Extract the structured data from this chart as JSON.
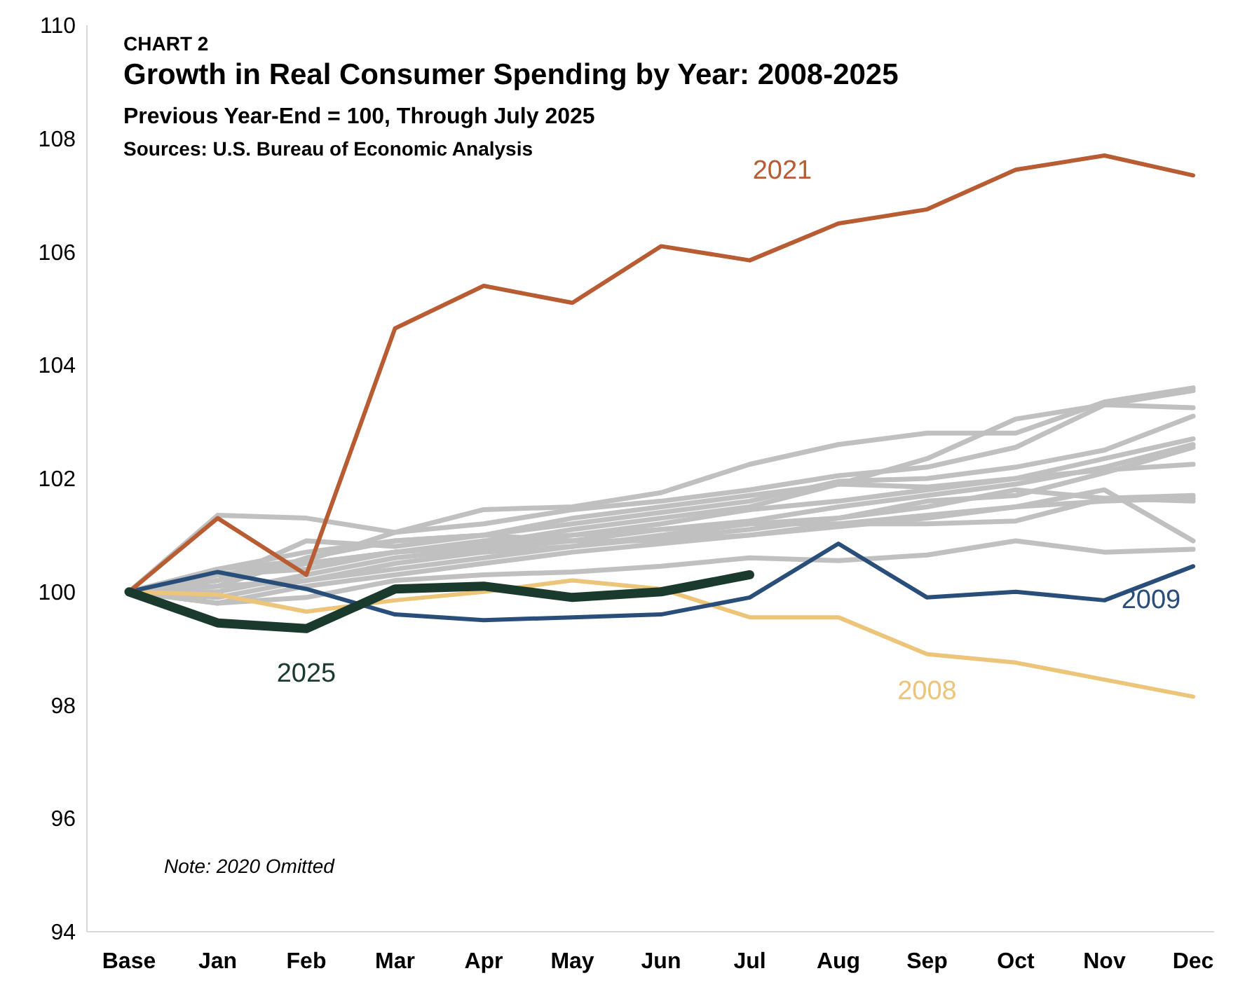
{
  "chart_data": {
    "type": "line",
    "title": "Growth in Real Consumer Spending by Year: 2008-2025",
    "subtitle": "Previous Year-End = 100, Through July 2025",
    "annotations": [
      "CHART 2",
      "Sources: U.S. Bureau of Economic Analysis",
      "Note: 2020 Omitted"
    ],
    "categories": [
      "Base",
      "Jan",
      "Feb",
      "Mar",
      "Apr",
      "May",
      "Jun",
      "Jul",
      "Aug",
      "Sep",
      "Oct",
      "Nov",
      "Dec"
    ],
    "ylim": [
      94,
      110
    ],
    "yticks": [
      94,
      96,
      98,
      100,
      102,
      104,
      106,
      108,
      110
    ],
    "grid": false,
    "marker": "none",
    "line_style": "solid",
    "series": [
      {
        "color": "#c0c0c0",
        "values": [
          100,
          101.35,
          101.3,
          101.05,
          101.2,
          101.45,
          101.6,
          101.8,
          102.05,
          102.2,
          102.55,
          103.3,
          103.55
        ]
      },
      {
        "color": "#c0c0c0",
        "values": [
          100,
          100.4,
          100.55,
          101.05,
          101.45,
          101.5,
          101.75,
          102.25,
          102.6,
          102.8,
          102.8,
          103.35,
          103.6
        ]
      },
      {
        "color": "#c0c0c0",
        "values": [
          100,
          100.2,
          100.9,
          100.8,
          101.0,
          101.3,
          101.5,
          101.7,
          101.9,
          102.35,
          103.05,
          103.3,
          103.25
        ]
      },
      {
        "color": "#c0c0c0",
        "values": [
          100,
          100.1,
          100.6,
          100.9,
          101.0,
          101.2,
          101.4,
          101.6,
          101.95,
          102.0,
          102.2,
          102.5,
          103.1
        ]
      },
      {
        "color": "#c0c0c0",
        "values": [
          100,
          100.3,
          100.5,
          100.7,
          100.85,
          101.1,
          101.3,
          101.5,
          101.9,
          101.85,
          102.0,
          102.35,
          102.7
        ]
      },
      {
        "color": "#c0c0c0",
        "values": [
          100,
          100.0,
          100.3,
          100.6,
          100.75,
          100.9,
          101.1,
          101.25,
          101.5,
          101.7,
          101.9,
          102.2,
          102.6
        ]
      },
      {
        "color": "#c0c0c0",
        "values": [
          100,
          99.9,
          100.2,
          100.5,
          100.7,
          100.8,
          100.95,
          101.1,
          101.3,
          101.6,
          101.7,
          102.1,
          102.55
        ]
      },
      {
        "color": "#c0c0c0",
        "values": [
          100,
          100.3,
          100.4,
          100.7,
          100.9,
          101.0,
          101.2,
          101.45,
          101.6,
          101.8,
          102.0,
          102.15,
          102.25
        ]
      },
      {
        "color": "#c0c0c0",
        "values": [
          100,
          100.1,
          100.2,
          100.4,
          100.6,
          100.8,
          101.0,
          101.2,
          101.3,
          101.5,
          101.8,
          101.65,
          101.7
        ]
      },
      {
        "color": "#c0c0c0",
        "values": [
          100,
          99.8,
          100.1,
          100.3,
          100.5,
          100.7,
          100.85,
          101.0,
          101.2,
          101.35,
          101.5,
          101.6,
          101.65
        ]
      },
      {
        "color": "#c0c0c0",
        "values": [
          100,
          100.2,
          100.5,
          100.7,
          100.8,
          101.0,
          101.1,
          101.2,
          101.2,
          101.2,
          101.25,
          101.65,
          101.6
        ]
      },
      {
        "color": "#c0c0c0",
        "values": [
          100,
          100.4,
          100.7,
          100.9,
          101.0,
          100.9,
          100.9,
          101.0,
          101.15,
          101.3,
          101.5,
          101.8,
          100.9
        ]
      },
      {
        "color": "#c0c0c0",
        "values": [
          100,
          99.8,
          99.9,
          100.2,
          100.3,
          100.35,
          100.45,
          100.6,
          100.55,
          100.65,
          100.9,
          100.7,
          100.75
        ]
      },
      {
        "name": "2008",
        "color": "#ecc57a",
        "values": [
          100,
          99.95,
          99.65,
          99.85,
          100.0,
          100.2,
          100.05,
          99.55,
          99.55,
          98.9,
          98.75,
          98.45,
          98.15
        ]
      },
      {
        "name": "2009",
        "color": "#2a4e7a",
        "values": [
          100,
          100.35,
          100.05,
          99.6,
          99.5,
          99.55,
          99.6,
          99.9,
          100.85,
          99.9,
          100.0,
          99.85,
          100.45
        ]
      },
      {
        "name": "2021",
        "color": "#b85c33",
        "values": [
          100,
          101.3,
          100.3,
          104.65,
          105.4,
          105.1,
          106.1,
          105.85,
          106.5,
          106.75,
          107.45,
          107.7,
          107.35
        ]
      },
      {
        "name": "2025",
        "color": "#1b3a2e",
        "values": [
          100,
          99.45,
          99.35,
          100.05,
          100.1,
          99.9,
          100.0,
          100.3,
          null,
          null,
          null,
          null,
          null
        ]
      }
    ]
  }
}
